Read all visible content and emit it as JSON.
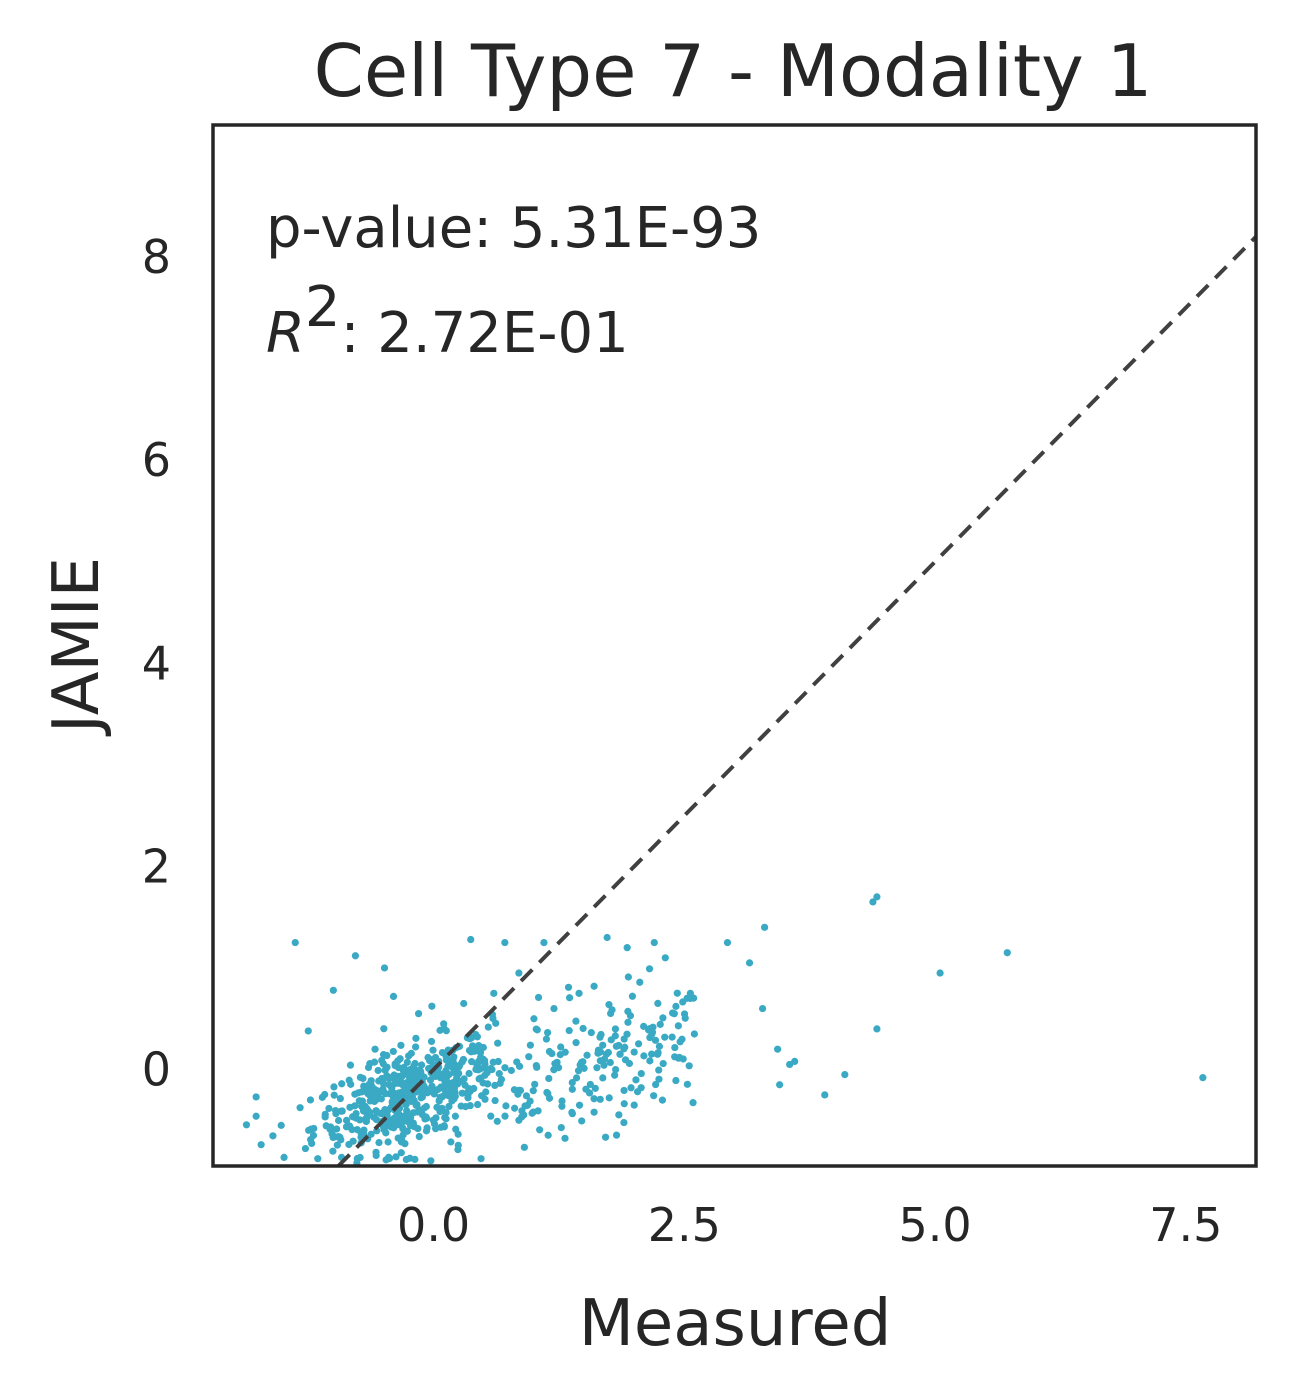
{
  "chart_data": {
    "type": "scatter",
    "title": "Cell Type  7 - Modality 1",
    "xlabel": "Measured",
    "ylabel": "JAMIE",
    "xlim": [
      -2.2,
      8.2
    ],
    "ylim": [
      -0.95,
      9.3
    ],
    "xticks": [
      0.0,
      2.5,
      5.0,
      7.5
    ],
    "xtick_labels": [
      "0.0",
      "2.5",
      "5.0",
      "7.5"
    ],
    "yticks": [
      0,
      2,
      4,
      6,
      8
    ],
    "ytick_labels": [
      "0",
      "2",
      "4",
      "6",
      "8"
    ],
    "grid": false,
    "legend": "none",
    "reference_line": {
      "style": "dashed",
      "color": "#404040",
      "slope": 1,
      "intercept": 0
    },
    "point_color": "#3aa9c4",
    "annotations": {
      "pvalue_text": "p-value: 5.31E-93",
      "r2_symbol": "R",
      "r2_exponent": "2",
      "r2_value": ": 2.72E-01"
    },
    "cluster": {
      "description_points": "dense cloud near origin",
      "center": [
        -0.3,
        -0.25
      ],
      "count": 700
    },
    "points": [
      [
        -1.77,
        -0.27
      ],
      [
        -1.77,
        -0.46
      ],
      [
        -1.72,
        -0.74
      ],
      [
        -1.52,
        -0.55
      ],
      [
        -1.38,
        1.25
      ],
      [
        -0.78,
        1.12
      ],
      [
        -0.49,
        1.0
      ],
      [
        -1.25,
        0.38
      ],
      [
        -1.0,
        0.78
      ],
      [
        0.71,
        1.25
      ],
      [
        0.37,
        1.28
      ],
      [
        1.1,
        1.25
      ],
      [
        1.73,
        1.3
      ],
      [
        1.93,
        1.2
      ],
      [
        2.2,
        1.25
      ],
      [
        2.31,
        1.1
      ],
      [
        2.93,
        1.25
      ],
      [
        3.15,
        1.05
      ],
      [
        3.3,
        1.4
      ],
      [
        4.38,
        1.65
      ],
      [
        4.42,
        1.7
      ],
      [
        5.05,
        0.95
      ],
      [
        5.72,
        1.15
      ],
      [
        3.28,
        0.6
      ],
      [
        4.42,
        0.4
      ],
      [
        3.43,
        0.2
      ],
      [
        3.55,
        0.05
      ],
      [
        3.6,
        0.08
      ],
      [
        3.45,
        -0.15
      ],
      [
        3.9,
        -0.25
      ],
      [
        4.1,
        -0.05
      ],
      [
        7.67,
        -0.08
      ],
      [
        2.0,
        -0.35
      ],
      [
        1.6,
        -0.42
      ],
      [
        0.85,
        -0.5
      ],
      [
        2.56,
        0.75
      ],
      [
        2.6,
        0.35
      ],
      [
        2.4,
        0.55
      ],
      [
        2.15,
        0.4
      ],
      [
        1.9,
        0.3
      ],
      [
        1.6,
        0.82
      ],
      [
        1.45,
        0.75
      ],
      [
        1.2,
        0.6
      ],
      [
        1.0,
        0.5
      ],
      [
        0.85,
        0.95
      ],
      [
        0.6,
        0.75
      ],
      [
        0.3,
        0.65
      ],
      [
        0.1,
        0.45
      ],
      [
        -0.15,
        0.55
      ],
      [
        -0.4,
        0.72
      ]
    ]
  }
}
